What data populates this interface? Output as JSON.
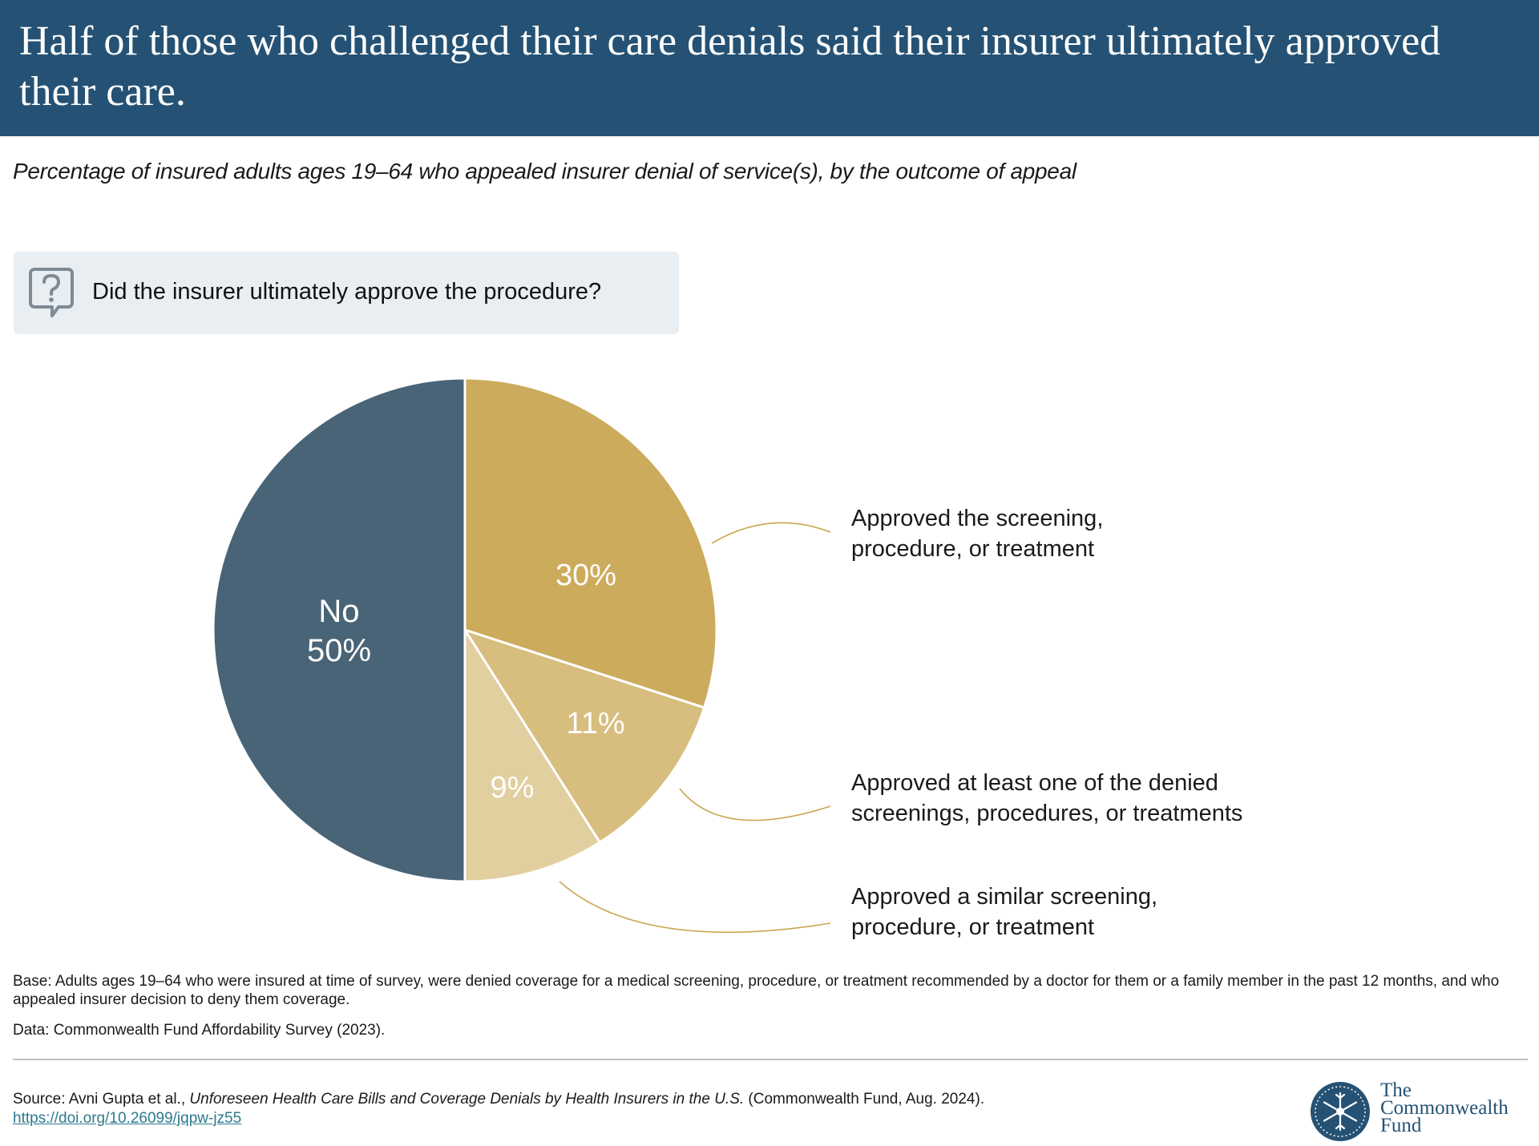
{
  "header": {
    "title": "Half of those who challenged their care denials said their insurer ultimately approved their care."
  },
  "subtitle": "Percentage of insured adults ages 19–64 who appealed insurer denial of service(s), by the outcome of appeal",
  "question": {
    "icon": "question-bubble-icon",
    "text": "Did the insurer ultimately approve the procedure?"
  },
  "chart_data": {
    "type": "pie",
    "slices": [
      {
        "label": "Approved the screening, procedure, or treatment",
        "value": 30,
        "value_label": "30%",
        "color": "#ccab5c"
      },
      {
        "label": "Approved at least one of the denied screenings, procedures, or treatments",
        "value": 11,
        "value_label": "11%",
        "color": "#d7bd7e"
      },
      {
        "label": "Approved a similar screening, procedure, or treatment",
        "value": 9,
        "value_label": "9%",
        "color": "#e2cfa0"
      },
      {
        "label": "No",
        "value": 50,
        "value_label": "50%",
        "color": "#496476"
      }
    ],
    "legend": {
      "approved_full": {
        "line1": "Approved the screening,",
        "line2": "procedure, or treatment"
      },
      "approved_partial": {
        "line1": "Approved at least one of the denied",
        "line2": "screenings, procedures, or treatments"
      },
      "approved_similar": {
        "line1": "Approved a similar screening,",
        "line2": "procedure, or treatment"
      }
    },
    "no_label": {
      "line1": "No",
      "line2": "50%"
    }
  },
  "notes": {
    "base": "Base: Adults ages 19–64 who were insured at time of survey, were denied coverage for a medical screening, procedure, or treatment recommended by a doctor for them or a family member in the past 12 months, and who appealed insurer decision to deny them coverage.",
    "data": "Data: Commonwealth Fund Affordability Survey (2023).",
    "source_prefix": "Source: Avni Gupta et al., ",
    "source_title": "Unforeseen Health Care Bills and Coverage Denials by Health Insurers in the U.S.",
    "source_suffix": " (Commonwealth Fund, Aug. 2024).",
    "source_link": "https://doi.org/10.26099/jqpw-jz55"
  },
  "logo": {
    "line1": "The",
    "line2": "Commonwealth",
    "line3": "Fund",
    "icon": "snowflake-seal-icon"
  },
  "colors": {
    "header_bg": "#255274",
    "callout_line": "#c9a64f"
  }
}
